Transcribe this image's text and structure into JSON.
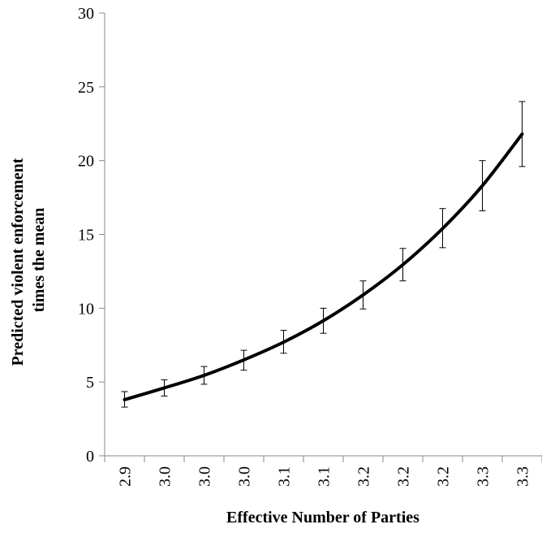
{
  "chart_data": {
    "type": "line",
    "title": "",
    "xlabel": "Effective Number of Parties",
    "ylabel_lines": [
      "Predicted violent enforcement",
      "times the mean"
    ],
    "categories": [
      "2.9",
      "3.0",
      "3.0",
      "3.0",
      "3.1",
      "3.1",
      "3.2",
      "3.2",
      "3.2",
      "3.3",
      "3.3"
    ],
    "series": [
      {
        "values": [
          3.8,
          4.6,
          5.45,
          6.5,
          7.7,
          9.15,
          10.9,
          12.95,
          15.4,
          18.3,
          21.8
        ],
        "lower": [
          3.3,
          4.05,
          4.85,
          5.8,
          6.95,
          8.3,
          9.95,
          11.85,
          14.1,
          16.6,
          19.6
        ],
        "upper": [
          4.35,
          5.15,
          6.05,
          7.15,
          8.5,
          10.0,
          11.85,
          14.05,
          16.75,
          20.0,
          24.0
        ]
      }
    ],
    "ylim": [
      0,
      30
    ],
    "yticks": [
      "0",
      "5",
      "10",
      "15",
      "20",
      "25",
      "30"
    ],
    "grid": false,
    "legend": "none",
    "line_color": "#000000"
  }
}
